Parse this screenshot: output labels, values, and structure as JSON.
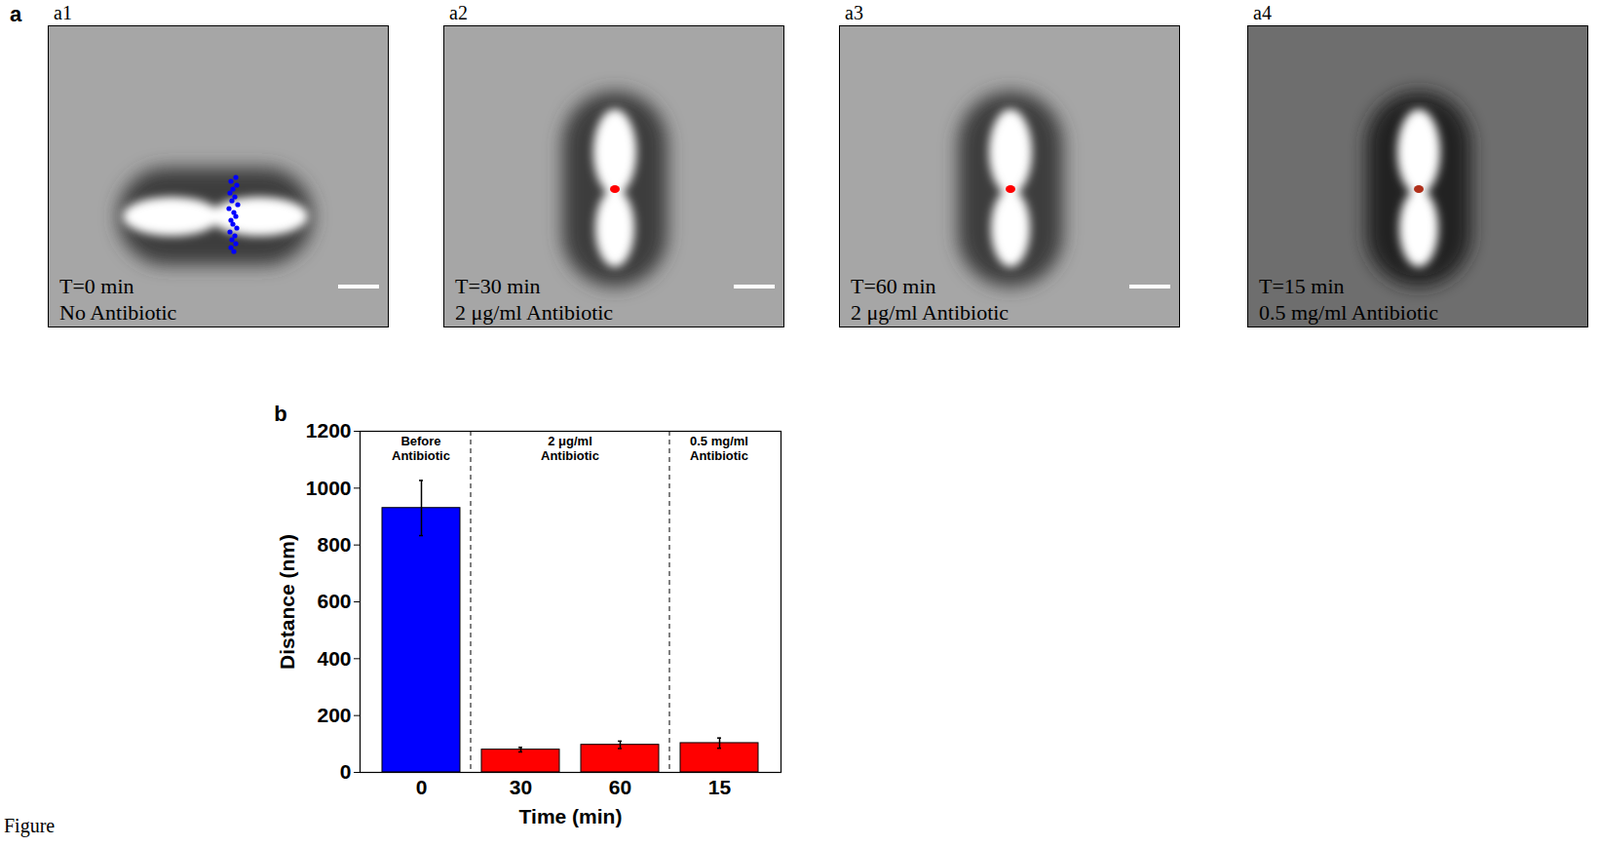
{
  "figure_label": "Figure",
  "panel_a": {
    "letter": "a",
    "images": [
      {
        "id": "a1",
        "time": "T=0 min",
        "condition": "No Antibiotic",
        "scale_bar": true
      },
      {
        "id": "a2",
        "time": "T=30 min",
        "condition": "2 μg/ml Antibiotic",
        "scale_bar": true
      },
      {
        "id": "a3",
        "time": "T=60 min",
        "condition": "2 μg/ml Antibiotic",
        "scale_bar": true
      },
      {
        "id": "a4",
        "time": "T=15 min",
        "condition": "0.5 mg/ml Antibiotic",
        "scale_bar": false
      }
    ]
  },
  "chart_data": {
    "type": "bar",
    "panel_label": "b",
    "x_label": "Time (min)",
    "y_label": "Distance (nm)",
    "categories": [
      "0",
      "30",
      "60",
      "15"
    ],
    "values": [
      930,
      80,
      97,
      103
    ],
    "errors": [
      97,
      8,
      13,
      18
    ],
    "colors": [
      "#0000ff",
      "#ff0000",
      "#ff0000",
      "#ff0000"
    ],
    "ylim": [
      0,
      1200
    ],
    "yticks": [
      0,
      200,
      400,
      600,
      800,
      1000,
      1200
    ],
    "groups": [
      {
        "label": "Before Antibiotic",
        "categories": [
          "0"
        ]
      },
      {
        "label": "2 μg/ml Antibiotic",
        "categories": [
          "30",
          "60"
        ]
      },
      {
        "label": "0.5 mg/ml Antibiotic",
        "categories": [
          "15"
        ]
      }
    ]
  }
}
